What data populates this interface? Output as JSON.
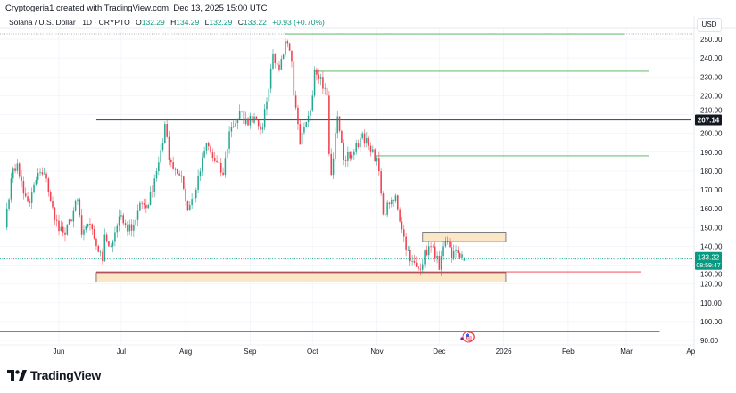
{
  "header": {
    "credit": "Cryptogeria1 created with TradingView.com, Dec 13, 2025 15:00 UTC"
  },
  "legend": {
    "symbol": "Solana / U.S. Dollar · 1D · CRYPTO",
    "o_label": "O",
    "o_value": "132.29",
    "h_label": "H",
    "h_value": "134.29",
    "l_label": "L",
    "l_value": "132.29",
    "c_label": "C",
    "c_value": "133.22",
    "change": "+0.93 (+0.70%)"
  },
  "price_axis": {
    "currency": "USD",
    "marker_line_label": "207.14",
    "last_price_label": "133.22",
    "countdown": "08:59:47"
  },
  "footer": {
    "brand": "TradingView"
  },
  "colors": {
    "up": "#089981",
    "down": "#f23645",
    "drawing_green": "#4caf50",
    "drawing_red": "#f23645",
    "zone_fill": "#fbe7c6",
    "grid": "#f0f3fa"
  },
  "chart_data": {
    "type": "candlestick",
    "title": "",
    "ylim": [
      90,
      255
    ],
    "y_ticks": [
      "250.00",
      "240.00",
      "230.00",
      "220.00",
      "210.00",
      "200.00",
      "190.00",
      "180.00",
      "170.00",
      "160.00",
      "150.00",
      "140.00",
      "130.00",
      "120.00",
      "110.00",
      "100.00",
      "90.00"
    ],
    "x_ticks": [
      {
        "date": "2025-06-01",
        "label": "Jun"
      },
      {
        "date": "2025-07-01",
        "label": "Jul"
      },
      {
        "date": "2025-08-01",
        "label": "Aug"
      },
      {
        "date": "2025-09-01",
        "label": "Sep"
      },
      {
        "date": "2025-10-01",
        "label": "Oct"
      },
      {
        "date": "2025-11-01",
        "label": "Nov"
      },
      {
        "date": "2025-12-01",
        "label": "Dec"
      },
      {
        "date": "2026-01-01",
        "label": "2026"
      },
      {
        "date": "2026-02-01",
        "label": "Feb"
      },
      {
        "date": "2026-03-01",
        "label": "Mar"
      },
      {
        "date": "2026-04-01",
        "label": "Ap"
      }
    ],
    "close_path": [
      [
        "2025-05-07",
        160
      ],
      [
        "2025-05-09",
        176
      ],
      [
        "2025-05-12",
        184
      ],
      [
        "2025-05-15",
        168
      ],
      [
        "2025-05-18",
        163
      ],
      [
        "2025-05-22",
        179
      ],
      [
        "2025-05-26",
        176
      ],
      [
        "2025-05-30",
        154
      ],
      [
        "2025-06-04",
        146
      ],
      [
        "2025-06-10",
        165
      ],
      [
        "2025-06-12",
        146
      ],
      [
        "2025-06-15",
        152
      ],
      [
        "2025-06-18",
        144
      ],
      [
        "2025-06-22",
        132
      ],
      [
        "2025-06-23",
        146
      ],
      [
        "2025-06-26",
        140
      ],
      [
        "2025-06-30",
        156
      ],
      [
        "2025-07-04",
        148
      ],
      [
        "2025-07-08",
        154
      ],
      [
        "2025-07-10",
        163
      ],
      [
        "2025-07-14",
        162
      ],
      [
        "2025-07-17",
        176
      ],
      [
        "2025-07-21",
        195
      ],
      [
        "2025-07-22",
        205
      ],
      [
        "2025-07-24",
        186
      ],
      [
        "2025-07-30",
        177
      ],
      [
        "2025-08-02",
        159
      ],
      [
        "2025-08-06",
        170
      ],
      [
        "2025-08-11",
        195
      ],
      [
        "2025-08-14",
        187
      ],
      [
        "2025-08-19",
        178
      ],
      [
        "2025-08-22",
        201
      ],
      [
        "2025-08-28",
        212
      ],
      [
        "2025-08-29",
        205
      ],
      [
        "2025-09-03",
        209
      ],
      [
        "2025-09-07",
        203
      ],
      [
        "2025-09-09",
        217
      ],
      [
        "2025-09-12",
        242
      ],
      [
        "2025-09-15",
        234
      ],
      [
        "2025-09-18",
        249
      ],
      [
        "2025-09-21",
        238
      ],
      [
        "2025-09-22",
        220
      ],
      [
        "2025-09-25",
        194
      ],
      [
        "2025-09-28",
        206
      ],
      [
        "2025-10-01",
        220
      ],
      [
        "2025-10-02",
        234
      ],
      [
        "2025-10-05",
        230
      ],
      [
        "2025-10-08",
        220
      ],
      [
        "2025-10-09",
        189
      ],
      [
        "2025-10-10",
        178
      ],
      [
        "2025-10-13",
        209
      ],
      [
        "2025-10-16",
        186
      ],
      [
        "2025-10-21",
        190
      ],
      [
        "2025-10-25",
        200
      ],
      [
        "2025-10-29",
        190
      ],
      [
        "2025-11-01",
        187
      ],
      [
        "2025-11-03",
        168
      ],
      [
        "2025-11-04",
        157
      ],
      [
        "2025-11-10",
        167
      ],
      [
        "2025-11-13",
        149
      ],
      [
        "2025-11-17",
        132
      ],
      [
        "2025-11-21",
        128
      ],
      [
        "2025-11-26",
        140
      ],
      [
        "2025-11-30",
        135
      ],
      [
        "2025-12-01",
        127.5
      ],
      [
        "2025-12-04",
        143
      ],
      [
        "2025-12-07",
        133.6
      ],
      [
        "2025-12-09",
        138
      ],
      [
        "2025-12-13",
        133.22
      ]
    ],
    "last_candle": {
      "date": "2025-12-13",
      "open": 132.29,
      "high": 134.29,
      "low": 132.29,
      "close": 133.22
    },
    "horizontal_lines": [
      {
        "price": 252.8,
        "from": "2025-09-18",
        "to": "2026-02-28",
        "style": "solid",
        "color": "green"
      },
      {
        "price": 233,
        "from": "2025-10-02",
        "to": "2026-03-12",
        "style": "solid",
        "color": "green"
      },
      {
        "price": 207.14,
        "from": "2025-06-19",
        "to": "2026-04-01",
        "style": "solid",
        "color": "dark-gray"
      },
      {
        "price": 188,
        "from": "2025-11-01",
        "to": "2026-03-12",
        "style": "solid",
        "color": "green"
      },
      {
        "price": 126.4,
        "from": "2025-06-19",
        "to": "2026-03-08",
        "style": "solid",
        "color": "red"
      },
      {
        "price": 95,
        "from": "2025-04-20",
        "to": "2026-03-17",
        "style": "solid",
        "color": "red"
      }
    ],
    "zones": [
      {
        "top": 147.5,
        "bottom": 142.5,
        "from": "2025-11-23",
        "to": "2026-01-02"
      },
      {
        "top": 126,
        "bottom": 121,
        "from": "2025-06-19",
        "to": "2026-01-02"
      }
    ]
  }
}
